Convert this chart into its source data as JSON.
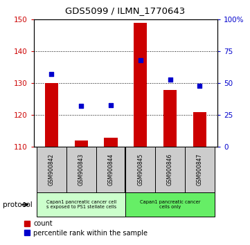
{
  "title": "GDS5099 / ILMN_1770643",
  "categories": [
    "GSM900842",
    "GSM900843",
    "GSM900844",
    "GSM900845",
    "GSM900846",
    "GSM900847"
  ],
  "bar_values": [
    130,
    112,
    113,
    149,
    128,
    121
  ],
  "percentile_values": [
    57,
    32,
    33,
    68,
    53,
    48
  ],
  "bar_bottom": 110,
  "ylim_left": [
    110,
    150
  ],
  "ylim_right": [
    0,
    100
  ],
  "yticks_left": [
    110,
    120,
    130,
    140,
    150
  ],
  "yticks_right": [
    0,
    25,
    50,
    75,
    100
  ],
  "bar_color": "#cc0000",
  "dot_color": "#0000cc",
  "group1_label": "Capan1 pancreatic cancer cell\ns exposed to PS1 stellate cells",
  "group2_label": "Capan1 pancreatic cancer\ncells only",
  "group1_indices": [
    0,
    1,
    2
  ],
  "group2_indices": [
    3,
    4,
    5
  ],
  "group1_color": "#ccffcc",
  "group2_color": "#66ee66",
  "protocol_label": "protocol",
  "legend_count_label": "count",
  "legend_percentile_label": "percentile rank within the sample",
  "tick_label_bg": "#cccccc",
  "right_axis_color": "#0000cc",
  "left_axis_color": "#cc0000"
}
